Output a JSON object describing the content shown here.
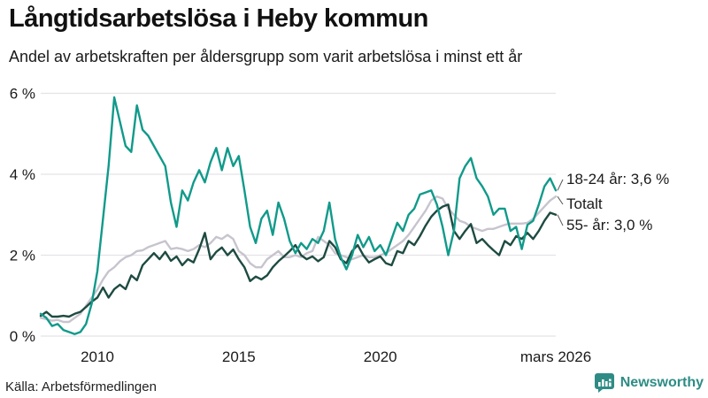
{
  "chart_data": {
    "type": "line",
    "title": "Långtidsarbetslösa i Heby kommun",
    "subtitle": "Andel av arbetskraften per åldersgrupp som varit arbetslösa i minst ett år",
    "unit": "%",
    "grid": true,
    "legend_position": "right-end-labels",
    "x_range": [
      2008.0,
      2026.2
    ],
    "ylim": [
      0,
      6
    ],
    "y_ticks": [
      {
        "value": 6,
        "label": "6 %"
      },
      {
        "value": 4,
        "label": "4 %"
      },
      {
        "value": 2,
        "label": "2 %"
      },
      {
        "value": 0,
        "label": "0 %"
      }
    ],
    "x_ticks": [
      {
        "value": 2010,
        "label": "2010"
      },
      {
        "value": 2015,
        "label": "2015"
      },
      {
        "value": 2020,
        "label": "2020"
      },
      {
        "value": 2026.2,
        "label": "mars 2026"
      }
    ],
    "x": [
      2008.0,
      2008.2,
      2008.4,
      2008.6,
      2008.8,
      2009.0,
      2009.2,
      2009.4,
      2009.6,
      2009.8,
      2010.0,
      2010.2,
      2010.4,
      2010.6,
      2010.8,
      2011.0,
      2011.2,
      2011.4,
      2011.6,
      2011.8,
      2012.0,
      2012.2,
      2012.4,
      2012.6,
      2012.8,
      2013.0,
      2013.2,
      2013.4,
      2013.6,
      2013.8,
      2014.0,
      2014.2,
      2014.4,
      2014.6,
      2014.8,
      2015.0,
      2015.2,
      2015.4,
      2015.6,
      2015.8,
      2016.0,
      2016.2,
      2016.4,
      2016.6,
      2016.8,
      2017.0,
      2017.2,
      2017.4,
      2017.6,
      2017.8,
      2018.0,
      2018.2,
      2018.4,
      2018.6,
      2018.8,
      2019.0,
      2019.2,
      2019.4,
      2019.6,
      2019.8,
      2020.0,
      2020.2,
      2020.4,
      2020.6,
      2020.8,
      2021.0,
      2021.2,
      2021.4,
      2021.6,
      2021.8,
      2022.0,
      2022.2,
      2022.4,
      2022.6,
      2022.8,
      2023.0,
      2023.2,
      2023.4,
      2023.6,
      2023.8,
      2024.0,
      2024.2,
      2024.4,
      2024.6,
      2024.8,
      2025.0,
      2025.2,
      2025.4,
      2025.6,
      2025.8,
      2026.0,
      2026.2
    ],
    "series": [
      {
        "name": "18-24 år",
        "end_label": "18-24 år: 3,6 %",
        "last_value": 3.6,
        "color": "#109a8a",
        "values": [
          0.55,
          0.45,
          0.25,
          0.3,
          0.15,
          0.1,
          0.05,
          0.1,
          0.3,
          0.8,
          1.6,
          2.9,
          4.2,
          5.9,
          5.3,
          4.7,
          4.55,
          5.7,
          5.1,
          4.95,
          4.7,
          4.45,
          4.2,
          3.3,
          2.7,
          3.6,
          3.35,
          3.8,
          4.1,
          3.8,
          4.3,
          4.65,
          4.1,
          4.65,
          4.2,
          4.45,
          3.6,
          2.7,
          2.3,
          2.9,
          3.1,
          2.5,
          3.3,
          2.9,
          2.35,
          2.05,
          2.3,
          2.15,
          2.4,
          2.3,
          2.6,
          3.3,
          2.4,
          1.95,
          1.65,
          2.0,
          2.5,
          2.2,
          2.45,
          2.1,
          2.25,
          2.0,
          2.4,
          2.8,
          2.6,
          3.0,
          3.15,
          3.5,
          3.55,
          3.6,
          3.25,
          2.7,
          2.0,
          2.6,
          3.9,
          4.2,
          4.4,
          3.9,
          3.7,
          3.45,
          3.0,
          3.15,
          3.15,
          2.6,
          2.7,
          2.15,
          2.75,
          2.85,
          3.25,
          3.7,
          3.9,
          3.6
        ]
      },
      {
        "name": "Totalt",
        "end_label": "Totalt",
        "last_value": 3.45,
        "color": "#c7c4ce",
        "values": [
          0.45,
          0.42,
          0.38,
          0.4,
          0.35,
          0.35,
          0.45,
          0.55,
          0.75,
          0.95,
          1.15,
          1.4,
          1.6,
          1.7,
          1.85,
          1.95,
          2.0,
          2.1,
          2.12,
          2.2,
          2.25,
          2.3,
          2.35,
          2.15,
          2.18,
          2.15,
          2.1,
          2.15,
          2.25,
          2.2,
          2.3,
          2.45,
          2.4,
          2.5,
          2.4,
          2.1,
          2.0,
          1.8,
          1.7,
          1.7,
          1.9,
          2.0,
          2.1,
          1.95,
          1.95,
          2.0,
          1.95,
          2.05,
          2.1,
          2.45,
          2.35,
          2.25,
          2.05,
          2.0,
          1.95,
          1.9,
          1.95,
          2.0,
          1.95,
          1.95,
          2.0,
          2.05,
          2.15,
          2.25,
          2.35,
          2.5,
          2.7,
          2.9,
          3.1,
          3.35,
          3.45,
          3.4,
          3.15,
          3.0,
          2.85,
          2.8,
          2.7,
          2.65,
          2.6,
          2.65,
          2.65,
          2.7,
          2.75,
          2.78,
          2.78,
          2.78,
          2.8,
          2.9,
          3.05,
          3.2,
          3.35,
          3.45
        ]
      },
      {
        "name": "55- år",
        "end_label": "55- år: 3,0 %",
        "last_value": 3.0,
        "color": "#1d4b41",
        "values": [
          0.5,
          0.6,
          0.48,
          0.48,
          0.5,
          0.48,
          0.55,
          0.6,
          0.72,
          0.85,
          0.95,
          1.2,
          0.95,
          1.16,
          1.27,
          1.16,
          1.5,
          1.38,
          1.75,
          1.9,
          2.05,
          1.9,
          2.08,
          1.86,
          1.97,
          1.75,
          1.9,
          1.82,
          2.15,
          2.55,
          1.9,
          2.08,
          2.19,
          2.0,
          2.14,
          1.9,
          1.7,
          1.36,
          1.47,
          1.4,
          1.5,
          1.7,
          1.85,
          1.97,
          2.1,
          2.25,
          2.0,
          1.9,
          1.97,
          1.85,
          1.95,
          2.35,
          2.2,
          1.9,
          1.8,
          2.1,
          2.25,
          2.0,
          1.82,
          1.9,
          1.97,
          1.8,
          1.75,
          2.1,
          2.05,
          2.35,
          2.25,
          2.47,
          2.73,
          2.95,
          3.1,
          3.2,
          3.25,
          2.6,
          2.4,
          2.6,
          2.77,
          2.3,
          2.4,
          2.25,
          2.12,
          2.0,
          2.35,
          2.25,
          2.47,
          2.4,
          2.55,
          2.4,
          2.6,
          2.85,
          3.05,
          3.0
        ]
      }
    ]
  },
  "footer": {
    "source": "Källa: Arbetsförmedlingen",
    "brand": "Newsworthy",
    "brand_icon": "newsworthy-chart-bubble-icon"
  },
  "colors": {
    "accent_teal": "#109a8a",
    "total_gray": "#c7c4ce",
    "dark_green": "#1d4b41",
    "grid": "#e4e2e7",
    "text": "#1a1a1a",
    "brand": "#2e8c85",
    "background": "#ffffff"
  }
}
